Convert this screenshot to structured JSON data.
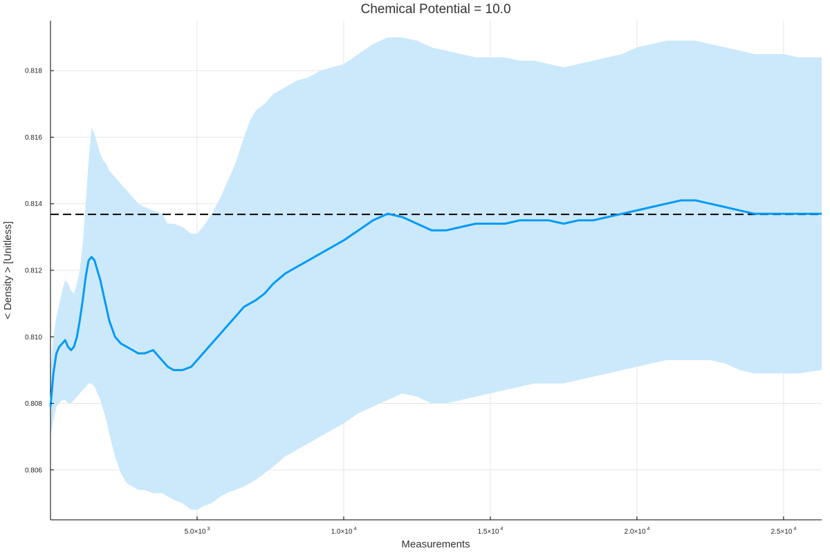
{
  "chart_data": {
    "type": "line",
    "title": "Chemical Potential = 10.0",
    "xlabel": "Measurements",
    "ylabel": "< Density > [Unitless]",
    "xlim": [
      0,
      26300
    ],
    "ylim": [
      0.8045,
      0.8195
    ],
    "grid": true,
    "legend": "none",
    "colors": {
      "line": "#009af9",
      "band": "#cce9fc",
      "reference": "#000000",
      "grid": "#e5e5e5"
    },
    "x_ticks": [
      {
        "value": 5000,
        "mantissa": "5.0×10",
        "exp": "3"
      },
      {
        "value": 10000,
        "mantissa": "1.0×10",
        "exp": "4"
      },
      {
        "value": 15000,
        "mantissa": "1.5×10",
        "exp": "4"
      },
      {
        "value": 20000,
        "mantissa": "2.0×10",
        "exp": "4"
      },
      {
        "value": 25000,
        "mantissa": "2.5×10",
        "exp": "4"
      }
    ],
    "y_ticks": [
      {
        "value": 0.806,
        "label": "0.806"
      },
      {
        "value": 0.808,
        "label": "0.808"
      },
      {
        "value": 0.81,
        "label": "0.810"
      },
      {
        "value": 0.812,
        "label": "0.812"
      },
      {
        "value": 0.814,
        "label": "0.814"
      },
      {
        "value": 0.816,
        "label": "0.816"
      },
      {
        "value": 0.818,
        "label": "0.818"
      }
    ],
    "reference_line": {
      "y": 0.81368,
      "style": "dashed"
    },
    "series": [
      {
        "x": [
          0,
          100,
          200,
          300,
          400,
          500,
          600,
          700,
          800,
          900,
          1000,
          1100,
          1200,
          1300,
          1400,
          1500,
          1600,
          1700,
          1800,
          1900,
          2000,
          2200,
          2400,
          2600,
          2800,
          3000,
          3200,
          3500,
          3800,
          4000,
          4200,
          4500,
          4800,
          5000,
          5200,
          5500,
          5800,
          6000,
          6300,
          6600,
          6800,
          7000,
          7300,
          7600,
          8000,
          8400,
          8800,
          9200,
          9600,
          10000,
          10500,
          11000,
          11500,
          12000,
          12500,
          13000,
          13500,
          14000,
          14500,
          15000,
          15500,
          16000,
          16500,
          17000,
          17500,
          18000,
          18500,
          19000,
          19500,
          20000,
          20500,
          21000,
          21500,
          22000,
          22500,
          23000,
          23500,
          24000,
          24500,
          25000,
          25500,
          26300
        ],
        "y": [
          0.8079,
          0.8089,
          0.8095,
          0.8097,
          0.8098,
          0.8099,
          0.8097,
          0.8096,
          0.8097,
          0.81,
          0.8105,
          0.8111,
          0.8118,
          0.8123,
          0.8124,
          0.8123,
          0.812,
          0.8117,
          0.8113,
          0.8109,
          0.8105,
          0.81,
          0.8098,
          0.8097,
          0.8096,
          0.8095,
          0.8095,
          0.8096,
          0.8093,
          0.8091,
          0.809,
          0.809,
          0.8091,
          0.8093,
          0.8095,
          0.8098,
          0.8101,
          0.8103,
          0.8106,
          0.8109,
          0.811,
          0.8111,
          0.8113,
          0.8116,
          0.8119,
          0.8121,
          0.8123,
          0.8125,
          0.8127,
          0.8129,
          0.8132,
          0.8135,
          0.8137,
          0.8136,
          0.8134,
          0.8132,
          0.8132,
          0.8133,
          0.8134,
          0.8134,
          0.8134,
          0.8135,
          0.8135,
          0.8135,
          0.8134,
          0.8135,
          0.8135,
          0.8136,
          0.8137,
          0.8138,
          0.8139,
          0.814,
          0.8141,
          0.8141,
          0.814,
          0.8139,
          0.8138,
          0.8137,
          0.8137,
          0.8137,
          0.8137,
          0.8137
        ],
        "lower": [
          0.807,
          0.8075,
          0.8079,
          0.808,
          0.8081,
          0.8081,
          0.808,
          0.808,
          0.8081,
          0.8082,
          0.8083,
          0.8084,
          0.8085,
          0.8086,
          0.8086,
          0.8085,
          0.8083,
          0.8081,
          0.8078,
          0.8075,
          0.8071,
          0.8064,
          0.8059,
          0.8056,
          0.8055,
          0.8054,
          0.8054,
          0.8053,
          0.8053,
          0.8052,
          0.8051,
          0.805,
          0.8048,
          0.8048,
          0.8049,
          0.805,
          0.8052,
          0.8053,
          0.8054,
          0.8055,
          0.8056,
          0.8057,
          0.8059,
          0.8061,
          0.8064,
          0.8066,
          0.8068,
          0.807,
          0.8072,
          0.8074,
          0.8077,
          0.8079,
          0.8081,
          0.8083,
          0.8082,
          0.808,
          0.808,
          0.8081,
          0.8082,
          0.8083,
          0.8084,
          0.8085,
          0.8086,
          0.8086,
          0.8086,
          0.8087,
          0.8088,
          0.8089,
          0.809,
          0.8091,
          0.8092,
          0.8093,
          0.8093,
          0.8093,
          0.8093,
          0.8092,
          0.809,
          0.8089,
          0.8089,
          0.8089,
          0.8089,
          0.809
        ],
        "upper": [
          0.809,
          0.81,
          0.8106,
          0.811,
          0.8114,
          0.8117,
          0.8116,
          0.8114,
          0.8113,
          0.8116,
          0.812,
          0.8128,
          0.814,
          0.8153,
          0.8163,
          0.8161,
          0.8158,
          0.8155,
          0.8153,
          0.8152,
          0.815,
          0.8148,
          0.8146,
          0.8144,
          0.8142,
          0.814,
          0.8139,
          0.8138,
          0.8137,
          0.8134,
          0.8134,
          0.8133,
          0.8131,
          0.8131,
          0.8133,
          0.8137,
          0.8142,
          0.8146,
          0.8152,
          0.816,
          0.8165,
          0.8168,
          0.817,
          0.8173,
          0.8175,
          0.8177,
          0.8178,
          0.818,
          0.8181,
          0.8182,
          0.8185,
          0.8188,
          0.819,
          0.819,
          0.8189,
          0.8187,
          0.8186,
          0.8185,
          0.8184,
          0.8184,
          0.8184,
          0.8183,
          0.8183,
          0.8182,
          0.8181,
          0.8182,
          0.8183,
          0.8184,
          0.8185,
          0.8187,
          0.8188,
          0.8189,
          0.8189,
          0.8189,
          0.8188,
          0.8187,
          0.8186,
          0.8185,
          0.8185,
          0.8185,
          0.8184,
          0.8184
        ]
      }
    ]
  }
}
